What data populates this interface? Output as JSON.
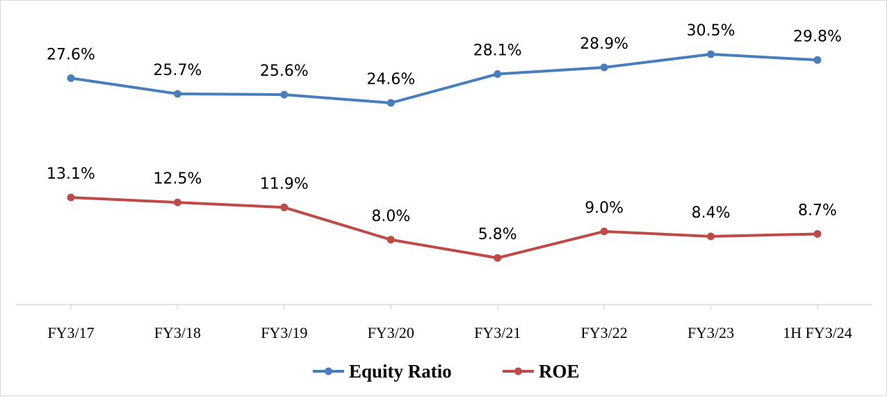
{
  "chart_data": {
    "type": "line",
    "categories": [
      "FY3/17",
      "FY3/18",
      "FY3/19",
      "FY3/20",
      "FY3/21",
      "FY3/22",
      "FY3/23",
      "1H FY3/24"
    ],
    "series": [
      {
        "name": "Equity Ratio",
        "values": [
          27.6,
          25.7,
          25.6,
          24.6,
          28.1,
          28.9,
          30.5,
          29.8
        ],
        "labels": [
          "27.6%",
          "25.7%",
          "25.6%",
          "24.6%",
          "28.1%",
          "28.9%",
          "30.5%",
          "29.8%"
        ],
        "color": "#4a7ebb"
      },
      {
        "name": "ROE",
        "values": [
          13.1,
          12.5,
          11.9,
          8.0,
          5.8,
          9.0,
          8.4,
          8.7
        ],
        "labels": [
          "13.1%",
          "12.5%",
          "11.9%",
          "8.0%",
          "5.8%",
          "9.0%",
          "8.4%",
          "8.7%"
        ],
        "color": "#be4b48"
      }
    ],
    "ylim": [
      0,
      35
    ],
    "grid": false,
    "legend_position": "bottom",
    "axis_color": "#d9d9d9"
  }
}
